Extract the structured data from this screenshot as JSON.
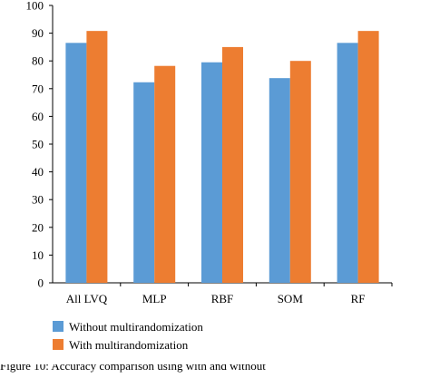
{
  "chart_data": {
    "type": "bar",
    "categories": [
      "All LVQ",
      "MLP",
      "RBF",
      "SOM",
      "RF"
    ],
    "series": [
      {
        "name": "Without multirandomization",
        "values": [
          86.5,
          72.3,
          79.5,
          73.8,
          86.5
        ],
        "color": "#5b9bd5"
      },
      {
        "name": "With multirandomization",
        "values": [
          90.8,
          78.2,
          85.0,
          80.0,
          90.8
        ],
        "color": "#ed7d31"
      }
    ],
    "title": "",
    "xlabel": "",
    "ylabel": "",
    "ylim": [
      0,
      100
    ],
    "yticks": [
      0,
      10,
      20,
      30,
      40,
      50,
      60,
      70,
      80,
      90,
      100
    ],
    "grid": false,
    "legend_position": "bottom-left"
  },
  "caption": "Figure 10: Accuracy comparison using with and without"
}
